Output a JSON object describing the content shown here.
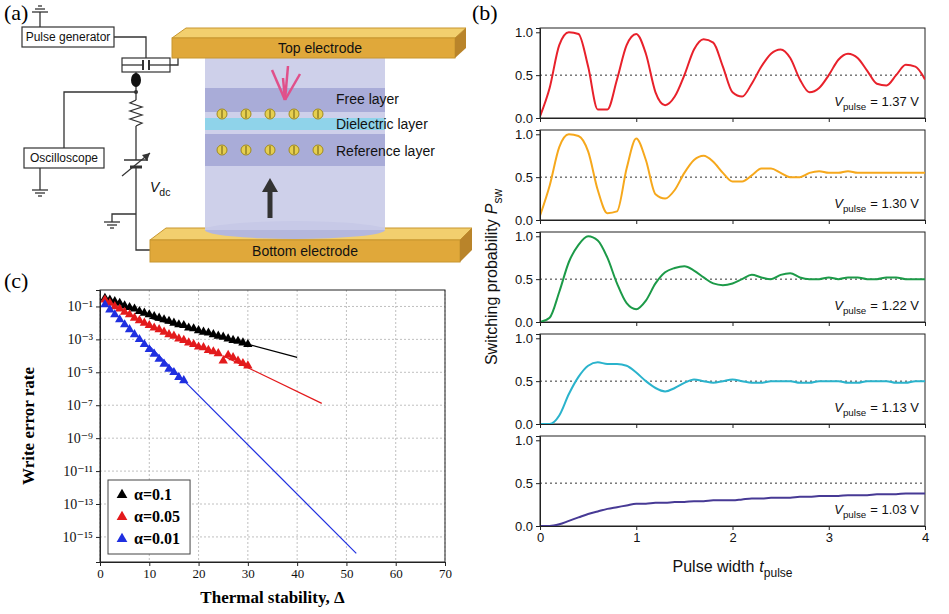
{
  "diagram": {
    "panel_label": "(a)",
    "boxes": [
      "Pulse generator",
      "Oscilloscope"
    ],
    "source_label": {
      "symbol": "V",
      "subscript": "dc"
    },
    "layers": [
      "Free layer",
      "Dielectric layer",
      "Reference layer"
    ],
    "electrodes": [
      "Top electrode",
      "Bottom electrode"
    ]
  },
  "chart_data": [
    {
      "type": "line",
      "panel_label": "(b)",
      "color": "#e8212b",
      "tick_labels": "y",
      "x": [
        0,
        0.1,
        0.2,
        0.3,
        0.4,
        0.5,
        0.6,
        0.7,
        0.8,
        0.9,
        1,
        1.1,
        1.2,
        1.3,
        1.4,
        1.5,
        1.6,
        1.7,
        1.8,
        1.9,
        2,
        2.1,
        2.2,
        2.3,
        2.4,
        2.5,
        2.6,
        2.7,
        2.8,
        2.9,
        3,
        3.1,
        3.2,
        3.3,
        3.4,
        3.5,
        3.6,
        3.7,
        3.8,
        3.9,
        4
      ],
      "values": [
        0.02,
        0.35,
        0.85,
        1,
        0.98,
        0.6,
        0.1,
        0.1,
        0.45,
        0.85,
        0.98,
        0.75,
        0.3,
        0.15,
        0.25,
        0.5,
        0.8,
        0.92,
        0.88,
        0.6,
        0.3,
        0.25,
        0.4,
        0.6,
        0.75,
        0.8,
        0.7,
        0.45,
        0.3,
        0.35,
        0.5,
        0.68,
        0.75,
        0.7,
        0.55,
        0.4,
        0.38,
        0.5,
        0.62,
        0.6,
        0.45
      ],
      "xlim": [
        0,
        4
      ],
      "xticks": [
        0,
        1,
        2,
        3,
        4
      ],
      "ylim": [
        0,
        1.05
      ],
      "yticks": [
        {
          "value": 0,
          "label": "0.0"
        },
        {
          "value": 0.5,
          "label": "0.5"
        },
        {
          "value": 1,
          "label": "1.0"
        }
      ],
      "hline": 0.5,
      "annotation": {
        "symbol": "V",
        "subscript": "pulse",
        "text": "= 1.37 V"
      }
    },
    {
      "type": "line",
      "color": "#f6a81c",
      "tick_labels": "y",
      "x": [
        0,
        0.1,
        0.2,
        0.3,
        0.4,
        0.5,
        0.6,
        0.7,
        0.8,
        0.9,
        1,
        1.1,
        1.2,
        1.3,
        1.4,
        1.5,
        1.6,
        1.7,
        1.8,
        1.9,
        2,
        2.1,
        2.2,
        2.3,
        2.4,
        2.5,
        2.6,
        2.7,
        2.8,
        2.9,
        3,
        3.1,
        3.2,
        3.3,
        3.4,
        3.5,
        3.6,
        3.7,
        3.8,
        3.9,
        4
      ],
      "values": [
        0.05,
        0.4,
        0.85,
        1,
        0.98,
        0.8,
        0.35,
        0.08,
        0.1,
        0.6,
        0.95,
        0.7,
        0.3,
        0.25,
        0.35,
        0.55,
        0.7,
        0.75,
        0.68,
        0.55,
        0.45,
        0.45,
        0.52,
        0.6,
        0.6,
        0.55,
        0.5,
        0.5,
        0.55,
        0.57,
        0.55,
        0.55,
        0.57,
        0.55,
        0.55,
        0.55,
        0.55,
        0.55,
        0.55,
        0.55,
        0.55
      ],
      "xlim": [
        0,
        4
      ],
      "xticks": [
        0,
        1,
        2,
        3,
        4
      ],
      "ylim": [
        0,
        1.05
      ],
      "yticks": [
        {
          "value": 0,
          "label": "0.0"
        },
        {
          "value": 0.5,
          "label": "0.5"
        },
        {
          "value": 1,
          "label": "1.0"
        }
      ],
      "hline": 0.5,
      "annotation": {
        "symbol": "V",
        "subscript": "pulse",
        "text": "= 1.30 V"
      }
    },
    {
      "type": "line",
      "color": "#1c9a48",
      "tick_labels": "y",
      "ylabel": {
        "text": "Switching probability",
        "symbol": "P",
        "subscript": "sw"
      },
      "x": [
        0,
        0.1,
        0.2,
        0.3,
        0.4,
        0.5,
        0.6,
        0.7,
        0.8,
        0.9,
        1,
        1.1,
        1.2,
        1.3,
        1.4,
        1.5,
        1.6,
        1.7,
        1.8,
        1.9,
        2,
        2.1,
        2.2,
        2.3,
        2.4,
        2.5,
        2.6,
        2.7,
        2.8,
        2.9,
        3,
        3.1,
        3.2,
        3.3,
        3.4,
        3.5,
        3.6,
        3.7,
        3.8,
        3.9,
        4
      ],
      "values": [
        0,
        0.05,
        0.35,
        0.7,
        0.9,
        1,
        0.95,
        0.75,
        0.45,
        0.22,
        0.15,
        0.25,
        0.45,
        0.58,
        0.63,
        0.65,
        0.6,
        0.52,
        0.45,
        0.43,
        0.45,
        0.5,
        0.55,
        0.52,
        0.5,
        0.55,
        0.57,
        0.52,
        0.5,
        0.5,
        0.52,
        0.5,
        0.52,
        0.52,
        0.5,
        0.5,
        0.52,
        0.52,
        0.5,
        0.5,
        0.5
      ],
      "xlim": [
        0,
        4
      ],
      "xticks": [
        0,
        1,
        2,
        3,
        4
      ],
      "ylim": [
        0,
        1.05
      ],
      "yticks": [
        {
          "value": 0,
          "label": "0.0"
        },
        {
          "value": 0.5,
          "label": "0.5"
        },
        {
          "value": 1,
          "label": "1.0"
        }
      ],
      "hline": 0.5,
      "annotation": {
        "symbol": "V",
        "subscript": "pulse",
        "text": "= 1.22 V"
      }
    },
    {
      "type": "line",
      "color": "#2ab3cc",
      "tick_labels": "y",
      "x": [
        0,
        0.1,
        0.2,
        0.3,
        0.4,
        0.5,
        0.6,
        0.7,
        0.8,
        0.9,
        1,
        1.1,
        1.2,
        1.3,
        1.4,
        1.5,
        1.6,
        1.7,
        1.8,
        1.9,
        2,
        2.1,
        2.2,
        2.3,
        2.4,
        2.5,
        2.6,
        2.7,
        2.8,
        2.9,
        3,
        3.1,
        3.2,
        3.3,
        3.4,
        3.5,
        3.6,
        3.7,
        3.8,
        3.9,
        4
      ],
      "values": [
        0,
        0,
        0.1,
        0.35,
        0.55,
        0.68,
        0.72,
        0.7,
        0.7,
        0.68,
        0.6,
        0.5,
        0.42,
        0.38,
        0.42,
        0.48,
        0.52,
        0.5,
        0.48,
        0.5,
        0.52,
        0.5,
        0.48,
        0.48,
        0.5,
        0.5,
        0.5,
        0.48,
        0.48,
        0.5,
        0.5,
        0.5,
        0.48,
        0.48,
        0.5,
        0.5,
        0.5,
        0.48,
        0.48,
        0.5,
        0.5
      ],
      "xlim": [
        0,
        4
      ],
      "xticks": [
        0,
        1,
        2,
        3,
        4
      ],
      "ylim": [
        0,
        1.05
      ],
      "yticks": [
        {
          "value": 0,
          "label": "0.0"
        },
        {
          "value": 0.5,
          "label": "0.5"
        },
        {
          "value": 1,
          "label": "1.0"
        }
      ],
      "hline": 0.5,
      "annotation": {
        "symbol": "V",
        "subscript": "pulse",
        "text": "= 1.13 V"
      }
    },
    {
      "type": "line",
      "color": "#473a95",
      "xlabel": {
        "text": "Pulse width",
        "symbol": "t",
        "subscript": "pulse"
      },
      "x": [
        0,
        0.1,
        0.2,
        0.3,
        0.4,
        0.5,
        0.6,
        0.7,
        0.8,
        0.9,
        1,
        1.1,
        1.2,
        1.3,
        1.4,
        1.5,
        1.6,
        1.7,
        1.8,
        1.9,
        2,
        2.1,
        2.2,
        2.3,
        2.4,
        2.5,
        2.6,
        2.7,
        2.8,
        2.9,
        3,
        3.1,
        3.2,
        3.3,
        3.4,
        3.5,
        3.6,
        3.7,
        3.8,
        3.9,
        4
      ],
      "values": [
        0,
        0,
        0.02,
        0.06,
        0.1,
        0.14,
        0.17,
        0.2,
        0.22,
        0.24,
        0.26,
        0.26,
        0.27,
        0.27,
        0.28,
        0.28,
        0.29,
        0.29,
        0.3,
        0.3,
        0.3,
        0.31,
        0.32,
        0.32,
        0.33,
        0.33,
        0.33,
        0.34,
        0.34,
        0.35,
        0.35,
        0.35,
        0.36,
        0.36,
        0.36,
        0.37,
        0.37,
        0.37,
        0.38,
        0.38,
        0.38
      ],
      "xlim": [
        0,
        4
      ],
      "xticks": [
        0,
        1,
        2,
        3,
        4
      ],
      "ylim": [
        0,
        1.05
      ],
      "yticks": [
        {
          "value": 0,
          "label": "0.0"
        },
        {
          "value": 0.5,
          "label": "0.5"
        },
        {
          "value": 1,
          "label": "1.0"
        }
      ],
      "hline": 0.5,
      "annotation": {
        "symbol": "V",
        "subscript": "pulse",
        "text": "= 1.03 V"
      }
    },
    {
      "type": "scatter",
      "panel_label": "(c)",
      "xlabel": "Thermal stability, Δ",
      "ylabel": "Write error rate",
      "xlim": [
        0,
        70
      ],
      "xticks": [
        0,
        10,
        20,
        30,
        40,
        50,
        60,
        70
      ],
      "ylim": [
        3e-17,
        1
      ],
      "yticks": [
        {
          "value": 0.1,
          "label": "10⁻¹"
        },
        {
          "value": 0.001,
          "label": "10⁻³"
        },
        {
          "value": 1e-05,
          "label": "10⁻⁵"
        },
        {
          "value": 1e-07,
          "label": "10⁻⁷"
        },
        {
          "value": 1e-09,
          "label": "10⁻⁹"
        },
        {
          "value": 1e-11,
          "label": "10⁻¹¹"
        },
        {
          "value": 1e-13,
          "label": "10⁻¹³"
        },
        {
          "value": 1e-15,
          "label": "10⁻¹⁵"
        }
      ],
      "log": "y",
      "grid": true,
      "legend": "lower left",
      "series": [
        {
          "name": "α=0.1",
          "type": "scatter",
          "marker": "triangle",
          "color": "#000000",
          "x": [
            1,
            2,
            3,
            4,
            5,
            6,
            7,
            8,
            9,
            10,
            11,
            12,
            13,
            14,
            15,
            16,
            17,
            18,
            19,
            20,
            21,
            22,
            23,
            24,
            25,
            26,
            27,
            28,
            29,
            30
          ],
          "values": [
            0.32,
            0.25,
            0.2,
            0.16,
            0.11,
            0.089,
            0.071,
            0.05,
            0.04,
            0.032,
            0.025,
            0.02,
            0.016,
            0.013,
            0.01,
            0.0079,
            0.0071,
            0.005,
            0.0045,
            0.0035,
            0.0028,
            0.0025,
            0.002,
            0.0016,
            0.0014,
            0.0011,
            0.00089,
            0.00079,
            0.00063,
            0.0005
          ]
        },
        {
          "name": "α=0.05",
          "type": "scatter",
          "marker": "triangle",
          "color": "#e31a1c",
          "x": [
            1,
            2,
            3,
            4,
            5,
            6,
            7,
            8,
            9,
            10,
            11,
            12,
            13,
            14,
            15,
            16,
            17,
            18,
            19,
            20,
            21,
            22,
            23,
            24,
            25,
            26,
            27,
            28,
            29,
            30
          ],
          "values": [
            0.25,
            0.16,
            0.1,
            0.071,
            0.045,
            0.032,
            0.02,
            0.014,
            0.01,
            0.0071,
            0.005,
            0.004,
            0.0028,
            0.002,
            0.0016,
            0.0011,
            0.00089,
            0.00063,
            0.0005,
            0.00035,
            0.00032,
            0.00022,
            0.00018,
            0.00014,
            5e-05,
            0.00011,
            7.9e-05,
            5e-05,
            3.5e-05,
            2.5e-05
          ]
        },
        {
          "name": "α=0.01",
          "type": "scatter",
          "marker": "triangle",
          "color": "#1f2fe0",
          "x": [
            1,
            2,
            3,
            4,
            5,
            6,
            7,
            8,
            9,
            10,
            11,
            12,
            13,
            14,
            15,
            16,
            17
          ],
          "values": [
            0.13,
            0.063,
            0.032,
            0.016,
            0.0079,
            0.004,
            0.002,
            0.001,
            0.0005,
            0.00025,
            0.00013,
            6.3e-05,
            3.2e-05,
            1.6e-05,
            1e-05,
            5e-06,
            3.2e-06
          ]
        },
        {
          "type": "line",
          "line_style": "solid",
          "color": "#000000",
          "x": [
            10,
            40
          ],
          "values": [
            0.02,
            8e-05
          ]
        },
        {
          "type": "line",
          "line_style": "solid",
          "color": "#e31a1c",
          "x": [
            25,
            45
          ],
          "values": [
            0.0001,
            1.3e-07
          ]
        },
        {
          "type": "line",
          "line_style": "solid",
          "color": "#1f2fe0",
          "x": [
            10,
            52
          ],
          "values": [
            0.0004,
            1e-16
          ]
        }
      ]
    }
  ]
}
